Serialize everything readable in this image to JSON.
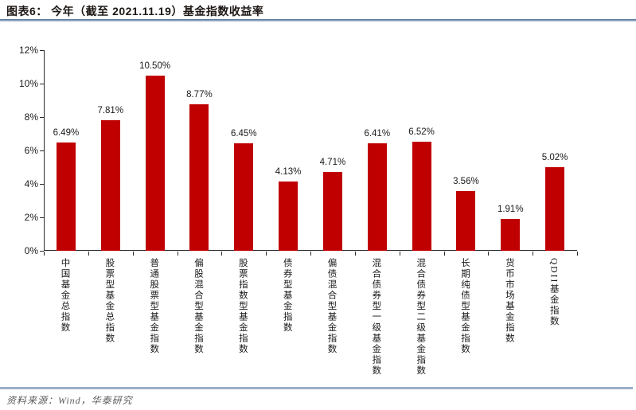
{
  "header": {
    "title": "图表6：  今年（截至 2021.11.19）基金指数收益率"
  },
  "footer": {
    "source_label": "资料来源：Wind，华泰研究"
  },
  "chart_data": {
    "type": "bar",
    "title": "今年（截至 2021.11.19）基金指数收益率",
    "categories": [
      "中国基金总指数",
      "股票型基金总指数",
      "普通股票型基金指数",
      "偏股混合型基金指数",
      "股票指数型基金指数",
      "债券型基金指数",
      "偏债混合型基金指数",
      "混合债券型一级基金指数",
      "混合债券型二级基金指数",
      "长期纯债型基金指数",
      "货币市场基金指数",
      "QDII基金指数"
    ],
    "values": [
      6.49,
      7.81,
      10.5,
      8.77,
      6.45,
      4.13,
      4.71,
      6.41,
      6.52,
      3.56,
      1.91,
      5.02
    ],
    "value_labels": [
      "6.49%",
      "7.81%",
      "10.50%",
      "8.77%",
      "6.45%",
      "4.13%",
      "4.71%",
      "6.41%",
      "6.52%",
      "3.56%",
      "1.91%",
      "5.02%"
    ],
    "xlabel": "",
    "ylabel": "",
    "ylim": [
      0,
      12
    ],
    "ytick_labels": [
      "0%",
      "2%",
      "4%",
      "6%",
      "8%",
      "10%",
      "12%"
    ],
    "ytick_values": [
      0,
      2,
      4,
      6,
      8,
      10,
      12
    ],
    "grid": false,
    "legend": "none",
    "bar_color": "#C00000",
    "axis_color": "#2b2b2b"
  }
}
